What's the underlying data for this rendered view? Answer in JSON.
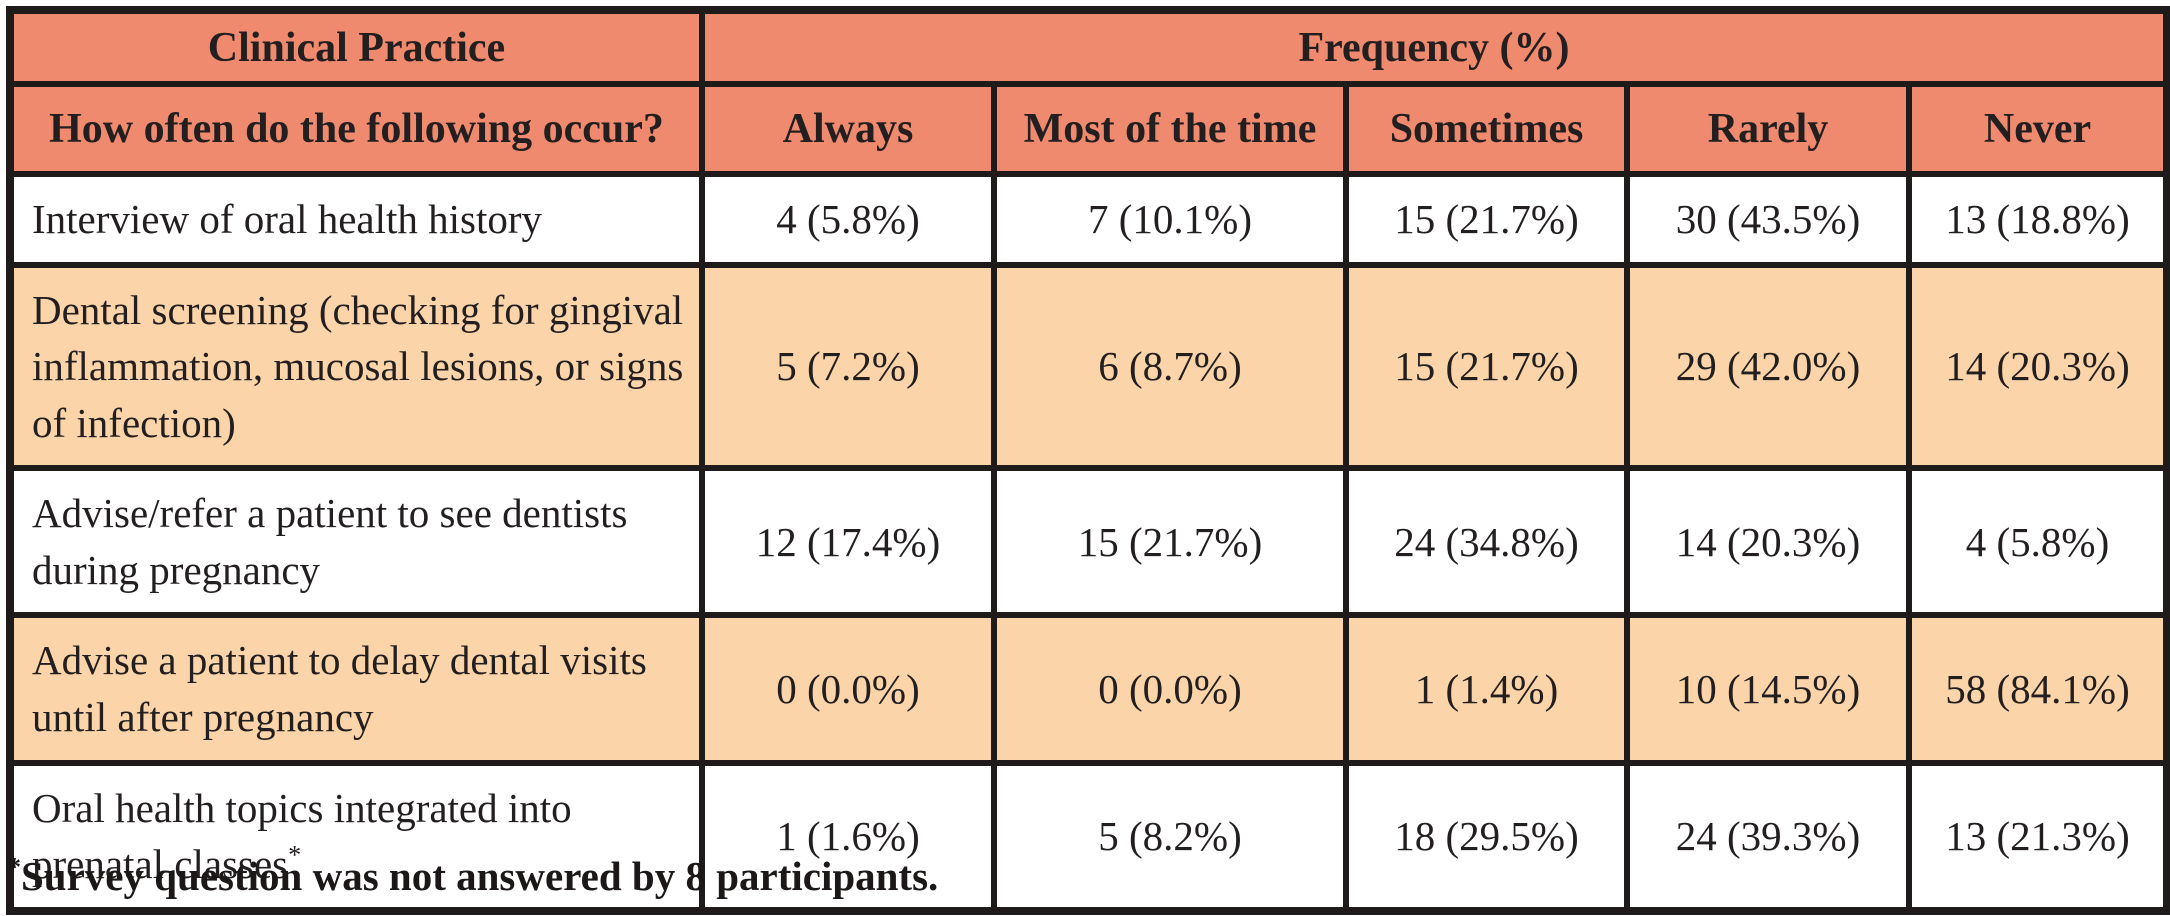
{
  "table": {
    "header": {
      "clinical_practice": "Clinical Practice",
      "frequency": "Frequency (%)",
      "question": "How often do the following occur?",
      "columns": [
        "Always",
        "Most of the time",
        "Sometimes",
        "Rarely",
        "Never"
      ]
    },
    "rows": [
      {
        "label": "Interview of oral health history",
        "marker": "",
        "shaded": false,
        "values": [
          "4 (5.8%)",
          "7 (10.1%)",
          "15 (21.7%)",
          "30 (43.5%)",
          "13 (18.8%)"
        ]
      },
      {
        "label": "Dental screening (checking for gingival inflammation, mucosal lesions, or signs of infection)",
        "marker": "",
        "shaded": true,
        "values": [
          "5 (7.2%)",
          "6 (8.7%)",
          "15 (21.7%)",
          "29 (42.0%)",
          "14 (20.3%)"
        ]
      },
      {
        "label": "Advise/refer a patient to see dentists during pregnancy",
        "marker": "",
        "shaded": false,
        "values": [
          "12 (17.4%)",
          "15 (21.7%)",
          "24 (34.8%)",
          "14 (20.3%)",
          "4 (5.8%)"
        ]
      },
      {
        "label": "Advise a patient to delay dental visits until after pregnancy",
        "marker": "",
        "shaded": true,
        "values": [
          "0 (0.0%)",
          "0 (0.0%)",
          "1 (1.4%)",
          "10 (14.5%)",
          "58 (84.1%)"
        ]
      },
      {
        "label": "Oral health topics integrated into prenatal classes",
        "marker": "*",
        "shaded": false,
        "values": [
          "1 (1.6%)",
          "5 (8.2%)",
          "18 (29.5%)",
          "24 (39.3%)",
          "13 (21.3%)"
        ]
      }
    ]
  },
  "footnote": {
    "marker": "*",
    "text": "Survey question was not answered by 8 participants."
  },
  "chart_data": {
    "type": "table",
    "title": "Clinical Practice — Frequency (%)",
    "categories": [
      "Always",
      "Most of the time",
      "Sometimes",
      "Rarely",
      "Never"
    ],
    "series": [
      {
        "name": "Interview of oral health history",
        "counts": [
          4,
          7,
          15,
          30,
          13
        ],
        "percents": [
          5.8,
          10.1,
          21.7,
          43.5,
          18.8
        ]
      },
      {
        "name": "Dental screening (checking for gingival inflammation, mucosal lesions, or signs of infection)",
        "counts": [
          5,
          6,
          15,
          29,
          14
        ],
        "percents": [
          7.2,
          8.7,
          21.7,
          42.0,
          20.3
        ]
      },
      {
        "name": "Advise/refer a patient to see dentists during pregnancy",
        "counts": [
          12,
          15,
          24,
          14,
          4
        ],
        "percents": [
          17.4,
          21.7,
          34.8,
          20.3,
          5.8
        ]
      },
      {
        "name": "Advise a patient to delay dental visits until after pregnancy",
        "counts": [
          0,
          0,
          1,
          10,
          58
        ],
        "percents": [
          0.0,
          0.0,
          1.4,
          14.5,
          84.1
        ]
      },
      {
        "name": "Oral health topics integrated into prenatal classes",
        "counts": [
          1,
          5,
          18,
          24,
          13
        ],
        "percents": [
          1.6,
          8.2,
          29.5,
          39.3,
          21.3
        ]
      }
    ]
  },
  "colors": {
    "header_bg": "#f08a6e",
    "shaded_row_bg": "#fbd5a9",
    "border": "#1e1b1a",
    "text": "#231f20"
  }
}
